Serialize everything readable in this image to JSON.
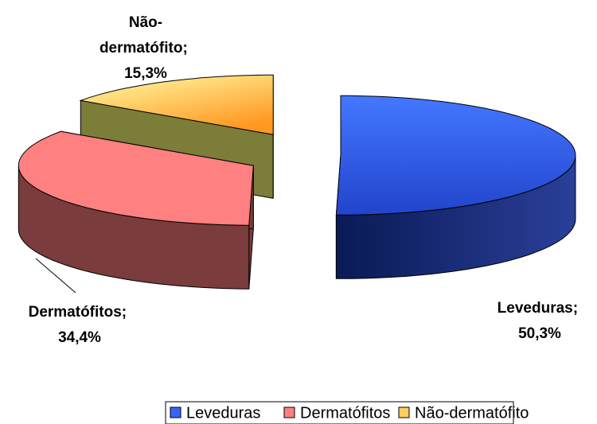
{
  "chart_data": {
    "type": "pie3d",
    "categories": [
      "Leveduras",
      "Dermatófitos",
      "Não-dermatófito"
    ],
    "values": [
      50.3,
      34.4,
      15.3
    ],
    "value_labels": [
      "Leveduras; 50,3%",
      "Dermatófitos; 34,4%",
      "Não-dermatófito; 15,3%"
    ],
    "colors": [
      "#3366ff",
      "#ff8080",
      "#ffcc66"
    ],
    "legend": "bottom"
  }
}
